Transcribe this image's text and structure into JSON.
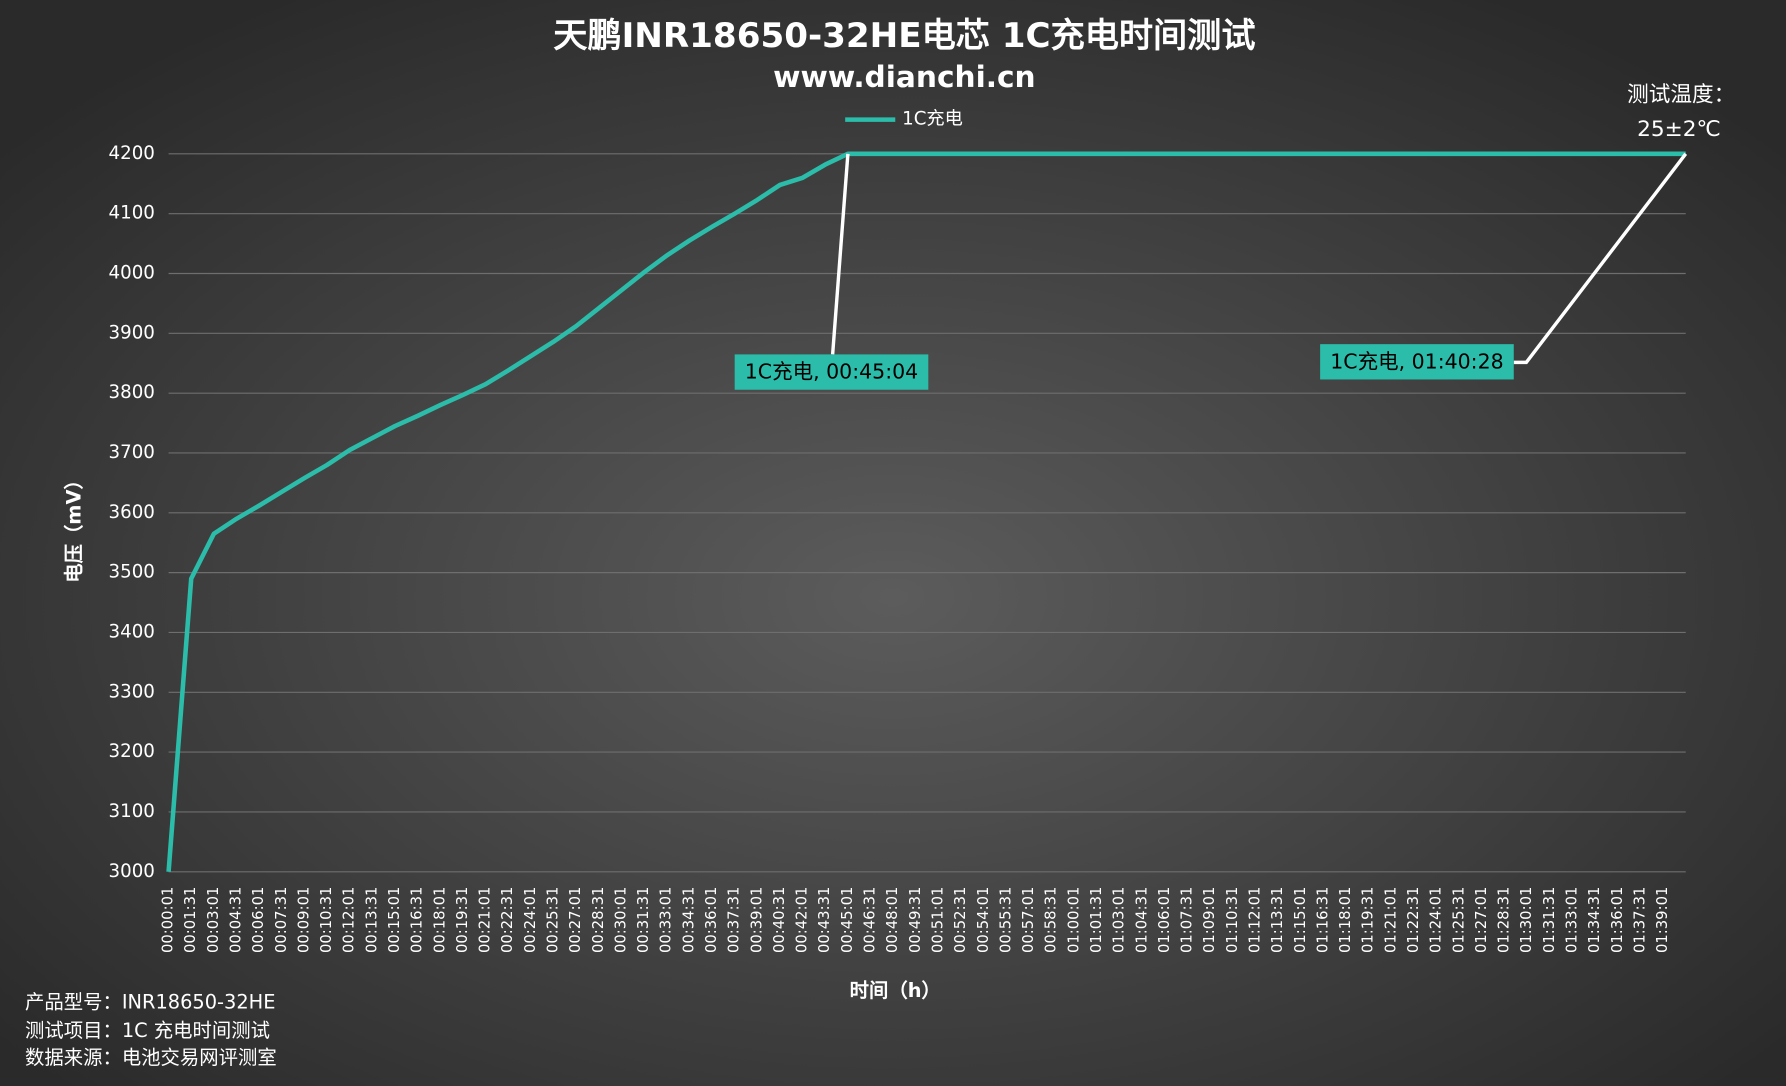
{
  "chart_data": {
    "type": "line",
    "title": "天鹏INR18650-32HE电芯 1C充电时间测试",
    "subtitle": "www.dianchi.cn",
    "x_label": "时间（h）",
    "y_label": "电压（mV）",
    "categories": [
      "00:00:01",
      "00:01:31",
      "00:03:01",
      "00:04:31",
      "00:06:01",
      "00:07:31",
      "00:09:01",
      "00:10:31",
      "00:12:01",
      "00:13:31",
      "00:15:01",
      "00:16:31",
      "00:18:01",
      "00:19:31",
      "00:21:01",
      "00:22:31",
      "00:24:01",
      "00:25:31",
      "00:27:01",
      "00:28:31",
      "00:30:01",
      "00:31:31",
      "00:33:01",
      "00:34:31",
      "00:36:01",
      "00:37:31",
      "00:39:01",
      "00:40:31",
      "00:42:01",
      "00:43:31",
      "00:45:01",
      "00:46:31",
      "00:48:01",
      "00:49:31",
      "00:51:01",
      "00:52:31",
      "00:54:01",
      "00:55:31",
      "00:57:01",
      "00:58:31",
      "01:00:01",
      "01:01:31",
      "01:03:01",
      "01:04:31",
      "01:06:01",
      "01:07:31",
      "01:09:01",
      "01:10:31",
      "01:12:01",
      "01:13:31",
      "01:15:01",
      "01:16:31",
      "01:18:01",
      "01:19:31",
      "01:21:01",
      "01:22:31",
      "01:24:01",
      "01:25:31",
      "01:27:01",
      "01:28:31",
      "01:30:01",
      "01:31:31",
      "01:33:01",
      "01:34:31",
      "01:36:01",
      "01:37:31",
      "01:39:01",
      null
    ],
    "series": [
      {
        "name": "1C充电",
        "color": "#2bbcaa",
        "values": [
          3000,
          3490,
          3565,
          3590,
          3612,
          3635,
          3658,
          3680,
          3705,
          3725,
          3745,
          3762,
          3780,
          3797,
          3815,
          3838,
          3862,
          3886,
          3912,
          3942,
          3972,
          4002,
          4030,
          4055,
          4078,
          4100,
          4123,
          4148,
          4160,
          4182,
          4200,
          4200,
          4200,
          4200,
          4200,
          4200,
          4200,
          4200,
          4200,
          4200,
          4200,
          4200,
          4200,
          4200,
          4200,
          4200,
          4200,
          4200,
          4200,
          4200,
          4200,
          4200,
          4200,
          4200,
          4200,
          4200,
          4200,
          4200,
          4200,
          4200,
          4200,
          4200,
          4200,
          4200,
          4200,
          4200,
          4200,
          4200
        ]
      }
    ],
    "ylim": [
      3000,
      4200
    ],
    "yticks": [
      3000,
      3100,
      3200,
      3300,
      3400,
      3500,
      3600,
      3700,
      3800,
      3900,
      4000,
      4100,
      4200
    ],
    "grid": true,
    "legend": "top",
    "annotations": [
      "1C充电, 00:45:04",
      "1C充电, 01:40:28"
    ],
    "temperature": [
      "测试温度：",
      "25±2℃"
    ],
    "notes": [
      "产品型号：INR18650-32HE",
      "测试项目：1C 充电时间测试",
      "数据来源：电池交易网评测室"
    ]
  }
}
